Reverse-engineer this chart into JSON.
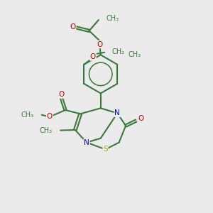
{
  "bg_color": "#ebebeb",
  "bond_color": "#3a7a3a",
  "N_color": "#0000cc",
  "O_color": "#cc0000",
  "S_color": "#aaaa00",
  "line_width": 1.5,
  "font_size": 7.5,
  "fig_size": [
    3.0,
    3.0
  ],
  "dpi": 100,
  "xlim": [
    0,
    10
  ],
  "ylim": [
    0,
    10
  ]
}
